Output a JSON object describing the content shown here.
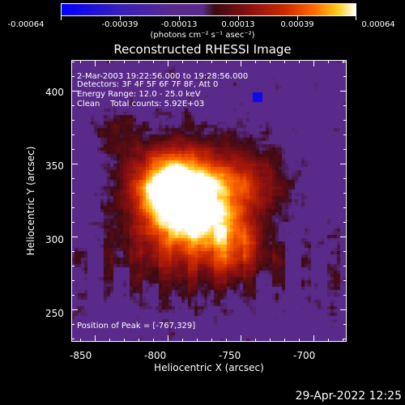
{
  "colorbar": {
    "labels": [
      "-0.00064",
      "-0.00039",
      "-0.00013",
      "0.00013",
      "0.00039",
      "0.00064"
    ],
    "units": "(photons cm⁻² s⁻¹ asec⁻²)"
  },
  "title": "Reconstructed RHESSI Image",
  "info": {
    "time_range": "2-Mar-2003 19:22:56.000 to 19:28:56.000",
    "detectors": "Detectors: 3F 4F 5F 6F 7F 8F, Att 0",
    "energy": "Energy Range: 12.0 - 25.0 keV",
    "clean": "Clean    Total counts: 5.92E+03",
    "peak": "Position of Peak = [-767,329]"
  },
  "axes": {
    "xlabel": "Heliocentric X (arcsec)",
    "ylabel": "Heliocentric Y (arcsec)",
    "xticks": [
      "-850",
      "-800",
      "-750",
      "-700"
    ],
    "yticks": [
      "400",
      "350",
      "300",
      "250"
    ],
    "xrange": [
      -866,
      -677
    ],
    "yrange": [
      228,
      421
    ]
  },
  "timestamp": "29-Apr-2022 12:25",
  "colors": {
    "negative": "#1010ff",
    "background": "#5a2a8a",
    "peak": "#ffffff",
    "frame": "#ffffff"
  }
}
